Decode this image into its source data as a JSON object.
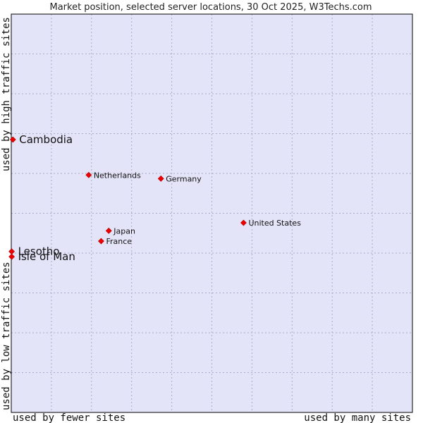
{
  "chart_data": {
    "type": "scatter",
    "title": "Market position, selected server locations, 30 Oct 2025, W3Techs.com",
    "xlabel_left": "used by fewer sites",
    "xlabel_right": "used by many sites",
    "ylabel_bottom": "used by low traffic sites",
    "ylabel_top": "used by high traffic sites",
    "xlim": [
      0,
      100
    ],
    "ylim": [
      0,
      100
    ],
    "grid": true,
    "colors": {
      "plot_bg": "#e4e4f8",
      "grid": "#aaaacc",
      "point": "#ee0000",
      "border": "#000000"
    },
    "points": [
      {
        "label": "Cambodia",
        "x": 0.4,
        "y": 68.5,
        "emphasis": true
      },
      {
        "label": "Netherlands",
        "x": 19.3,
        "y": 59.6,
        "emphasis": false
      },
      {
        "label": "Germany",
        "x": 37.3,
        "y": 58.7,
        "emphasis": false
      },
      {
        "label": "United States",
        "x": 57.9,
        "y": 47.6,
        "emphasis": false
      },
      {
        "label": "Japan",
        "x": 24.3,
        "y": 45.6,
        "emphasis": false
      },
      {
        "label": "France",
        "x": 22.4,
        "y": 43.0,
        "emphasis": false
      },
      {
        "label": "Lesotho",
        "x": 0.1,
        "y": 40.4,
        "emphasis": true
      },
      {
        "label": "Isle of Man",
        "x": 0.1,
        "y": 39.1,
        "emphasis": true
      }
    ]
  }
}
